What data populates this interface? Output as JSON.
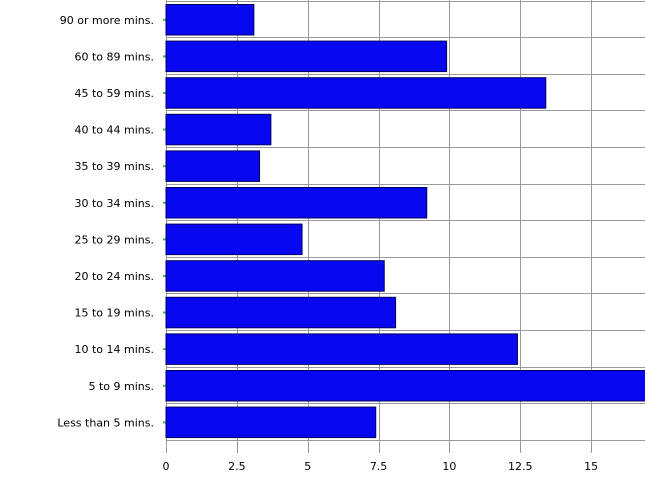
{
  "chart_data": {
    "type": "bar",
    "orientation": "horizontal",
    "title": "",
    "xlabel": "",
    "ylabel": "",
    "categories": [
      "90 or more mins.",
      "60 to 89 mins.",
      "45 to 59 mins.",
      "40 to 44 mins.",
      "35 to 39 mins.",
      "30 to 34 mins.",
      "25 to 29 mins.",
      "20 to 24 mins.",
      "15 to 19 mins.",
      "10 to 14 mins.",
      "5 to 9 mins.",
      "Less than 5 mins."
    ],
    "values": [
      3.1,
      9.9,
      13.4,
      3.7,
      3.3,
      9.2,
      4.8,
      7.7,
      8.1,
      12.4,
      17.2,
      7.4
    ],
    "xlim": [
      0,
      16.9
    ],
    "xticks": [
      0,
      2.5,
      5,
      7.5,
      10,
      12.5,
      15
    ],
    "xtick_labels": [
      "0",
      "2.5",
      "5",
      "7.5",
      "10",
      "12.5",
      "15"
    ],
    "grid": true,
    "bar_color": "#0808f0",
    "bar_edge_color": "#000060",
    "grid_color": "#999999",
    "tick_mark_color": "#4caf50"
  }
}
